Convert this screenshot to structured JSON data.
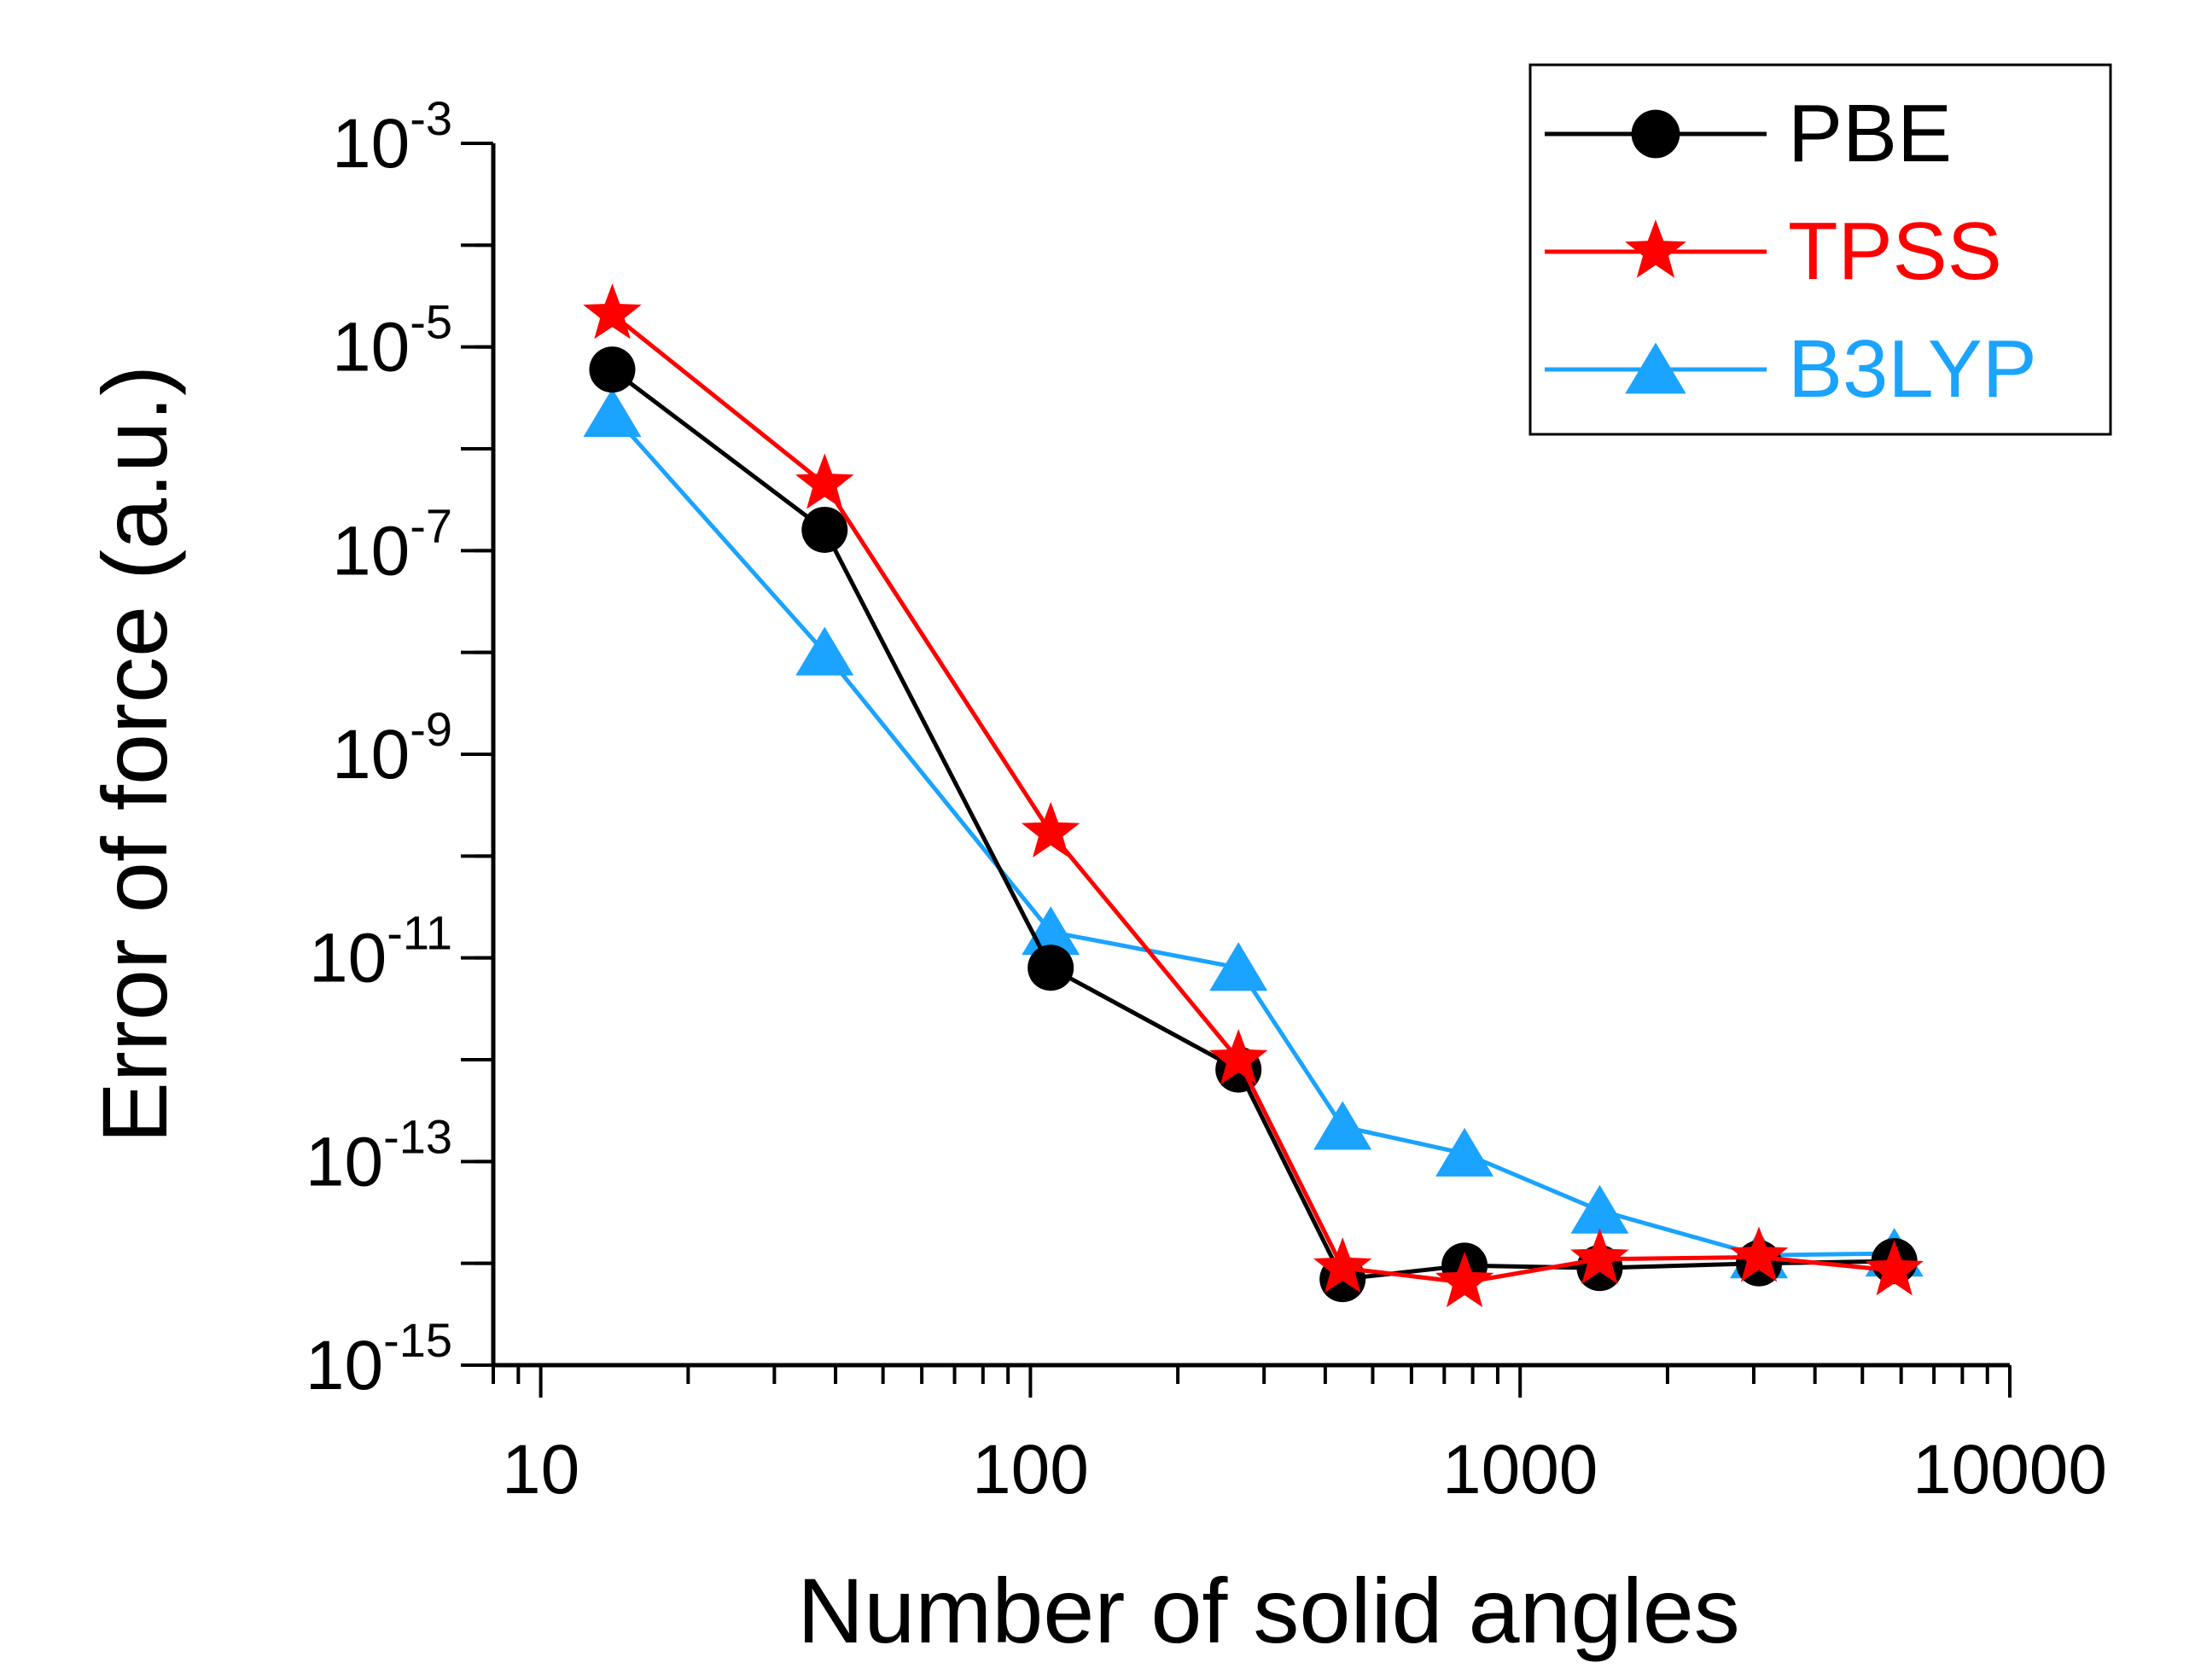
{
  "chart_data": {
    "type": "line",
    "title": "",
    "xlabel": "Number of solid angles",
    "ylabel": "Error of force (a.u.)",
    "xscale": "log",
    "yscale": "log",
    "xlim": [
      8,
      10000
    ],
    "ylim": [
      1e-15,
      0.001
    ],
    "x_ticks": [
      {
        "value": 10,
        "label": "10"
      },
      {
        "value": 100,
        "label": "100"
      },
      {
        "value": 1000,
        "label": "1000"
      },
      {
        "value": 10000,
        "label": "10000"
      }
    ],
    "y_ticks": [
      {
        "value": 1e-15,
        "base": "10",
        "exp": "-15"
      },
      {
        "value": 1e-13,
        "base": "10",
        "exp": "-13"
      },
      {
        "value": 1e-11,
        "base": "10",
        "exp": "-11"
      },
      {
        "value": 1e-09,
        "base": "10",
        "exp": "-9"
      },
      {
        "value": 1e-07,
        "base": "10",
        "exp": "-7"
      },
      {
        "value": 1e-05,
        "base": "10",
        "exp": "-5"
      },
      {
        "value": 0.001,
        "base": "10",
        "exp": "-3"
      }
    ],
    "legend_position": "top-right",
    "series": [
      {
        "name": "PBE",
        "color": "#000000",
        "marker": "circle",
        "x": [
          14,
          38,
          110,
          266,
          434,
          770,
          1454,
          3074,
          5810
        ],
        "y": [
          6e-06,
          1.6e-07,
          8e-12,
          8e-13,
          7e-15,
          9.5e-15,
          9e-15,
          1e-14,
          1.05e-14
        ]
      },
      {
        "name": "TPSS",
        "color": "#ff0000",
        "marker": "star",
        "x": [
          14,
          38,
          110,
          266,
          434,
          770,
          1454,
          3074,
          5810
        ],
        "y": [
          2.1e-05,
          4.5e-07,
          1.7e-10,
          1e-12,
          9e-15,
          6.5e-15,
          1.1e-14,
          1.15e-14,
          8.5e-15
        ]
      },
      {
        "name": "B3LYP",
        "color": "#1aa3ff",
        "marker": "triangle",
        "x": [
          14,
          38,
          110,
          266,
          434,
          770,
          1454,
          3074,
          5810
        ],
        "y": [
          2.2e-06,
          1e-08,
          1.8e-11,
          8e-12,
          2.2e-13,
          1.2e-13,
          3.3e-14,
          1.2e-14,
          1.25e-14
        ]
      }
    ]
  }
}
